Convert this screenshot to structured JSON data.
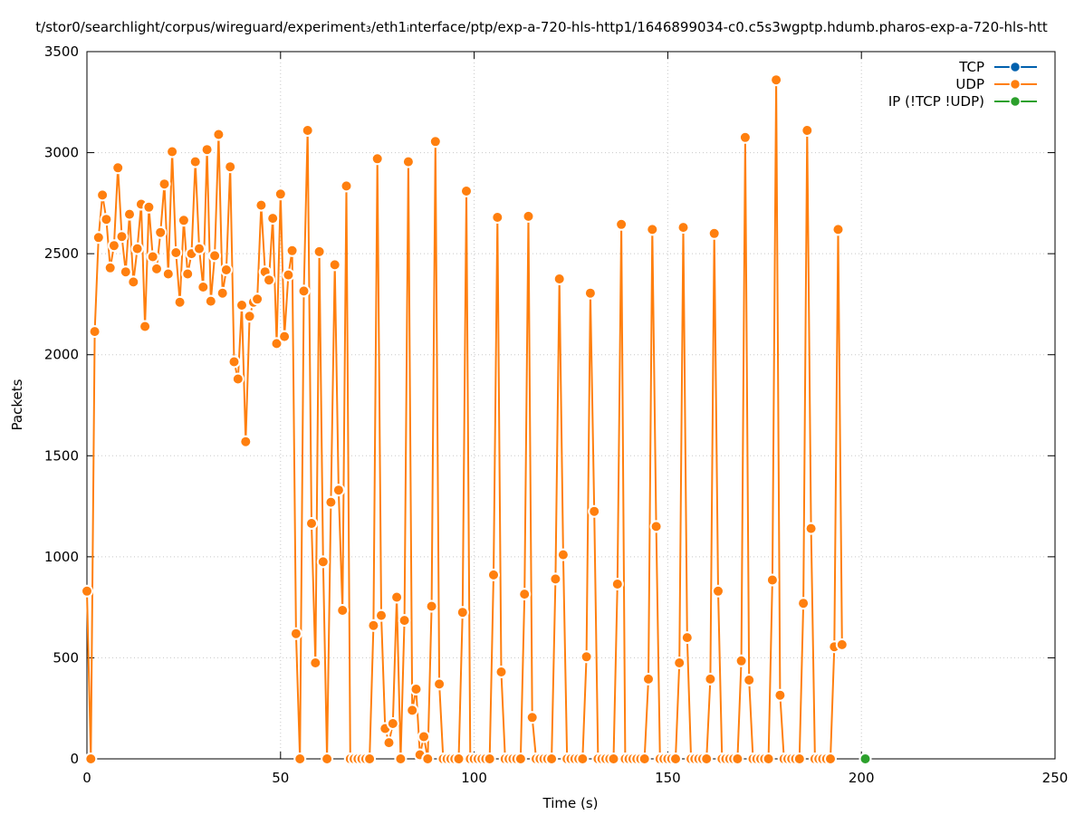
{
  "chart_data": {
    "type": "line",
    "title": "t/stor0/searchlight/corpus/wireguard/experiment₃/eth1ᵢnterface/ptp/exp-a-720-hls-http1/1646899034-c0.c5s3wgptp.hdumb.pharos-exp-a-720-hls-htt",
    "xlabel": "Time (s)",
    "ylabel": "Packets",
    "xlim": [
      0,
      250
    ],
    "ylim": [
      0,
      3500
    ],
    "xticks": [
      0,
      50,
      100,
      150,
      200,
      250
    ],
    "yticks": [
      0,
      500,
      1000,
      1500,
      2000,
      2500,
      3000,
      3500
    ],
    "grid": true,
    "legend_position": "top-right",
    "series": [
      {
        "name": "TCP",
        "color": "#0060ad",
        "points": []
      },
      {
        "name": "UDP",
        "color": "#ff7f0e",
        "points": [
          [
            0,
            830
          ],
          [
            1,
            0
          ],
          [
            2,
            2115
          ],
          [
            3,
            2580
          ],
          [
            4,
            2790
          ],
          [
            5,
            2670
          ],
          [
            6,
            2430
          ],
          [
            7,
            2540
          ],
          [
            8,
            2925
          ],
          [
            9,
            2585
          ],
          [
            10,
            2410
          ],
          [
            11,
            2695
          ],
          [
            12,
            2360
          ],
          [
            13,
            2525
          ],
          [
            14,
            2745
          ],
          [
            15,
            2140
          ],
          [
            16,
            2730
          ],
          [
            17,
            2485
          ],
          [
            18,
            2425
          ],
          [
            19,
            2605
          ],
          [
            20,
            2845
          ],
          [
            21,
            2400
          ],
          [
            22,
            3005
          ],
          [
            23,
            2505
          ],
          [
            24,
            2260
          ],
          [
            25,
            2665
          ],
          [
            26,
            2400
          ],
          [
            27,
            2500
          ],
          [
            28,
            2955
          ],
          [
            29,
            2525
          ],
          [
            30,
            2335
          ],
          [
            31,
            3015
          ],
          [
            32,
            2265
          ],
          [
            33,
            2490
          ],
          [
            34,
            3090
          ],
          [
            35,
            2305
          ],
          [
            36,
            2420
          ],
          [
            37,
            2930
          ],
          [
            38,
            1965
          ],
          [
            39,
            1880
          ],
          [
            40,
            2245
          ],
          [
            41,
            1570
          ],
          [
            42,
            2190
          ],
          [
            43,
            2260
          ],
          [
            44,
            2275
          ],
          [
            45,
            2740
          ],
          [
            46,
            2410
          ],
          [
            47,
            2370
          ],
          [
            48,
            2675
          ],
          [
            49,
            2055
          ],
          [
            50,
            2795
          ],
          [
            51,
            2090
          ],
          [
            52,
            2395
          ],
          [
            53,
            2515
          ],
          [
            54,
            620
          ],
          [
            55,
            0
          ],
          [
            56,
            2315
          ],
          [
            57,
            3110
          ],
          [
            58,
            1165
          ],
          [
            59,
            475
          ],
          [
            60,
            2510
          ],
          [
            61,
            975
          ],
          [
            62,
            0
          ],
          [
            63,
            1270
          ],
          [
            64,
            2445
          ],
          [
            65,
            1330
          ],
          [
            66,
            735
          ],
          [
            67,
            2835
          ],
          [
            68,
            0
          ],
          [
            69,
            0
          ],
          [
            70,
            0
          ],
          [
            71,
            0
          ],
          [
            72,
            0
          ],
          [
            73,
            0
          ],
          [
            74,
            660
          ],
          [
            75,
            2970
          ],
          [
            76,
            710
          ],
          [
            77,
            150
          ],
          [
            78,
            80
          ],
          [
            79,
            175
          ],
          [
            80,
            800
          ],
          [
            81,
            0
          ],
          [
            82,
            685
          ],
          [
            83,
            2955
          ],
          [
            84,
            240
          ],
          [
            85,
            345
          ],
          [
            86,
            20
          ],
          [
            87,
            110
          ],
          [
            88,
            0
          ],
          [
            89,
            755
          ],
          [
            90,
            3055
          ],
          [
            91,
            370
          ],
          [
            92,
            0
          ],
          [
            93,
            0
          ],
          [
            94,
            0
          ],
          [
            95,
            0
          ],
          [
            96,
            0
          ],
          [
            97,
            725
          ],
          [
            98,
            2810
          ],
          [
            99,
            0
          ],
          [
            100,
            0
          ],
          [
            101,
            0
          ],
          [
            102,
            0
          ],
          [
            103,
            0
          ],
          [
            104,
            0
          ],
          [
            105,
            910
          ],
          [
            106,
            2680
          ],
          [
            107,
            430
          ],
          [
            108,
            0
          ],
          [
            109,
            0
          ],
          [
            110,
            0
          ],
          [
            111,
            0
          ],
          [
            112,
            0
          ],
          [
            113,
            815
          ],
          [
            114,
            2685
          ],
          [
            115,
            205
          ],
          [
            116,
            0
          ],
          [
            117,
            0
          ],
          [
            118,
            0
          ],
          [
            119,
            0
          ],
          [
            120,
            0
          ],
          [
            121,
            890
          ],
          [
            122,
            2375
          ],
          [
            123,
            1010
          ],
          [
            124,
            0
          ],
          [
            125,
            0
          ],
          [
            126,
            0
          ],
          [
            127,
            0
          ],
          [
            128,
            0
          ],
          [
            129,
            505
          ],
          [
            130,
            2305
          ],
          [
            131,
            1225
          ],
          [
            132,
            0
          ],
          [
            133,
            0
          ],
          [
            134,
            0
          ],
          [
            135,
            0
          ],
          [
            136,
            0
          ],
          [
            137,
            865
          ],
          [
            138,
            2645
          ],
          [
            139,
            0
          ],
          [
            140,
            0
          ],
          [
            141,
            0
          ],
          [
            142,
            0
          ],
          [
            143,
            0
          ],
          [
            144,
            0
          ],
          [
            145,
            395
          ],
          [
            146,
            2620
          ],
          [
            147,
            1150
          ],
          [
            148,
            0
          ],
          [
            149,
            0
          ],
          [
            150,
            0
          ],
          [
            151,
            0
          ],
          [
            152,
            0
          ],
          [
            153,
            475
          ],
          [
            154,
            2630
          ],
          [
            155,
            600
          ],
          [
            156,
            0
          ],
          [
            157,
            0
          ],
          [
            158,
            0
          ],
          [
            159,
            0
          ],
          [
            160,
            0
          ],
          [
            161,
            395
          ],
          [
            162,
            2600
          ],
          [
            163,
            830
          ],
          [
            164,
            0
          ],
          [
            165,
            0
          ],
          [
            166,
            0
          ],
          [
            167,
            0
          ],
          [
            168,
            0
          ],
          [
            169,
            485
          ],
          [
            170,
            3075
          ],
          [
            171,
            390
          ],
          [
            172,
            0
          ],
          [
            173,
            0
          ],
          [
            174,
            0
          ],
          [
            175,
            0
          ],
          [
            176,
            0
          ],
          [
            177,
            885
          ],
          [
            178,
            3360
          ],
          [
            179,
            315
          ],
          [
            180,
            0
          ],
          [
            181,
            0
          ],
          [
            182,
            0
          ],
          [
            183,
            0
          ],
          [
            184,
            0
          ],
          [
            185,
            770
          ],
          [
            186,
            3110
          ],
          [
            187,
            1140
          ],
          [
            188,
            0
          ],
          [
            189,
            0
          ],
          [
            190,
            0
          ],
          [
            191,
            0
          ],
          [
            192,
            0
          ],
          [
            193,
            555
          ],
          [
            194,
            2620
          ],
          [
            195,
            565
          ]
        ]
      },
      {
        "name": "IP (!TCP  !UDP)",
        "color": "#2ca02c",
        "points": [
          [
            201,
            0
          ]
        ]
      }
    ]
  }
}
